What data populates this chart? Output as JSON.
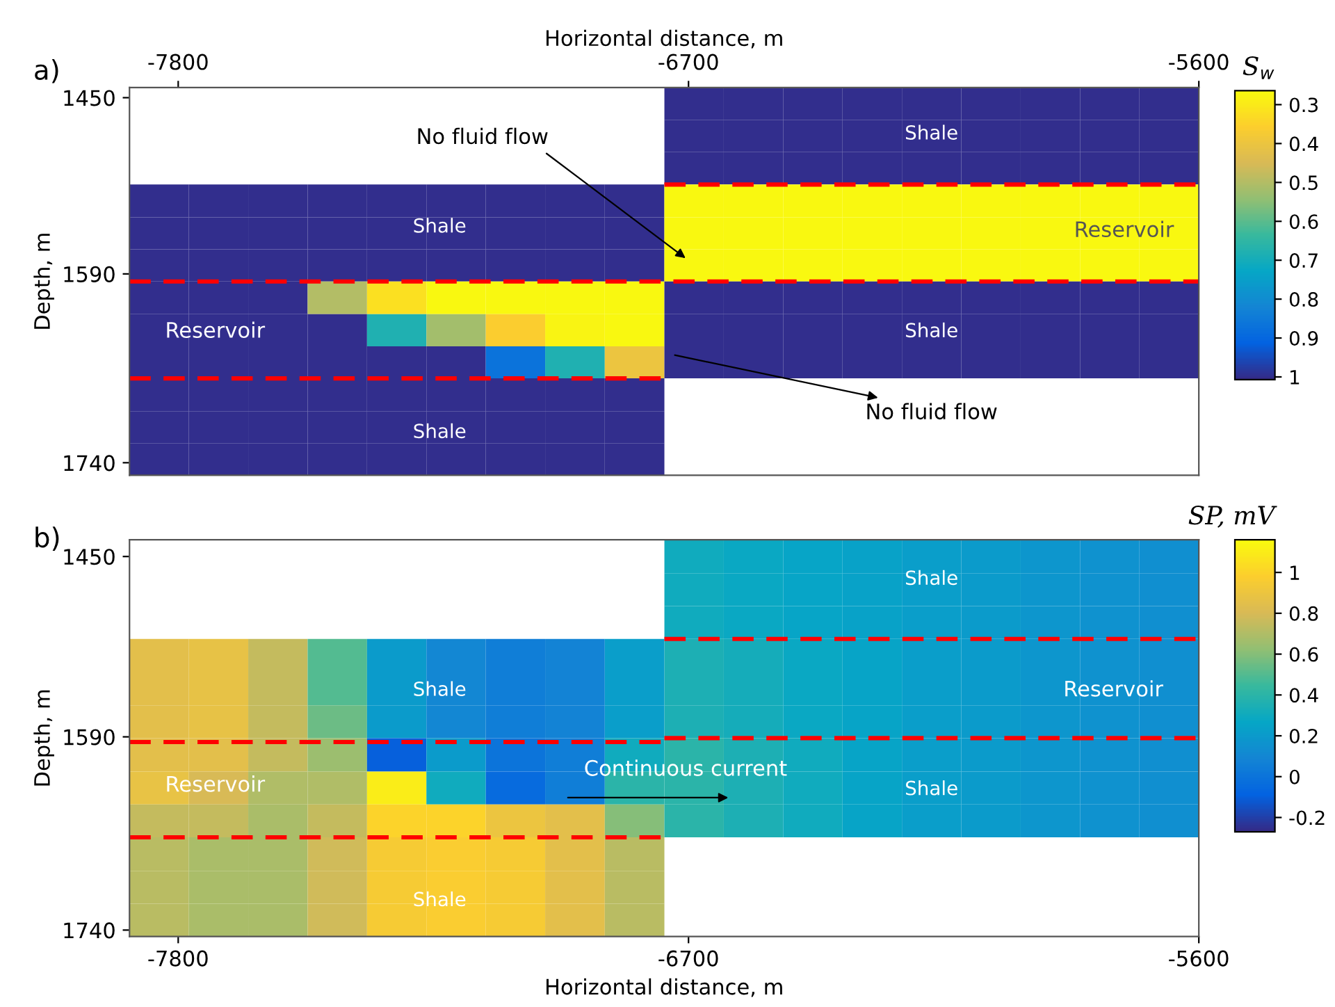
{
  "chart_data": [
    {
      "type": "heatmap",
      "title": "a)",
      "xlabel": "Horizontal distance, m",
      "ylabel": "Depth, m",
      "clabel": "S$_{w}$",
      "x": [
        -7841,
        -7713,
        -7585,
        -7457,
        -7329,
        -7201,
        -7073,
        -6945,
        -6816,
        -6688,
        -6560,
        -6432,
        -6304,
        -6176,
        -6048,
        -5920,
        -5792,
        -5664
      ],
      "y": [
        1455,
        1480,
        1506,
        1532,
        1558,
        1583,
        1609,
        1635,
        1660,
        1686,
        1712,
        1737
      ],
      "xlim": [
        -7905,
        -5600
      ],
      "xticks": [
        -7800,
        -6700,
        -5600
      ],
      "ylim": [
        1750,
        1442
      ],
      "yticks": [
        1450,
        1590,
        1740
      ],
      "clim": [
        1.007,
        0.264
      ],
      "cticks": [
        0.3,
        0.4,
        0.5,
        0.6,
        0.7,
        0.8,
        0.9,
        1
      ],
      "cells": [
        [
          null,
          null,
          null,
          null,
          null,
          null,
          null,
          null,
          null,
          1,
          1,
          1,
          1,
          1,
          1,
          1,
          1,
          1
        ],
        [
          null,
          null,
          null,
          null,
          null,
          null,
          null,
          null,
          null,
          1,
          1,
          1,
          1,
          1,
          1,
          1,
          1,
          1
        ],
        [
          null,
          null,
          null,
          null,
          null,
          null,
          null,
          null,
          null,
          1,
          1,
          1,
          1,
          1,
          1,
          1,
          1,
          1
        ],
        [
          1,
          1,
          1,
          1,
          1,
          1,
          1,
          1,
          1,
          0.27,
          0.27,
          0.27,
          0.27,
          0.27,
          0.27,
          0.27,
          0.27,
          0.27
        ],
        [
          1,
          1,
          1,
          1,
          1,
          1,
          1,
          1,
          1,
          0.27,
          0.27,
          0.27,
          0.27,
          0.27,
          0.27,
          0.27,
          0.27,
          0.27
        ],
        [
          1,
          1,
          1,
          1,
          1,
          1,
          1,
          1,
          1,
          0.27,
          0.27,
          0.27,
          0.27,
          0.27,
          0.27,
          0.27,
          0.27,
          0.27
        ],
        [
          1,
          1,
          1,
          0.5,
          0.32,
          0.27,
          0.27,
          0.27,
          0.27,
          1,
          1,
          1,
          1,
          1,
          1,
          1,
          1,
          1
        ],
        [
          1,
          1,
          1,
          1,
          0.68,
          0.52,
          0.36,
          0.28,
          0.27,
          1,
          1,
          1,
          1,
          1,
          1,
          1,
          1,
          1
        ],
        [
          1,
          1,
          1,
          1,
          1,
          1,
          0.87,
          0.68,
          0.4,
          1,
          1,
          1,
          1,
          1,
          1,
          1,
          1,
          1
        ],
        [
          1,
          1,
          1,
          1,
          1,
          1,
          1,
          1,
          1,
          null,
          null,
          null,
          null,
          null,
          null,
          null,
          null,
          null
        ],
        [
          1,
          1,
          1,
          1,
          1,
          1,
          1,
          1,
          1,
          null,
          null,
          null,
          null,
          null,
          null,
          null,
          null,
          null
        ],
        [
          1,
          1,
          1,
          1,
          1,
          1,
          1,
          1,
          1,
          null,
          null,
          null,
          null,
          null,
          null,
          null,
          null,
          null
        ]
      ],
      "series": [
        {
          "type": "line",
          "x": [
            -6752,
            -5600
          ],
          "values": [
            1519,
            1519
          ],
          "color": "#ff0000",
          "line_style": "dashed"
        },
        {
          "type": "line",
          "x": [
            -7905,
            -5600
          ],
          "values": [
            1596,
            1596
          ],
          "color": "#ff0000",
          "line_style": "dashed"
        },
        {
          "type": "line",
          "x": [
            -7905,
            -6752
          ],
          "values": [
            1673,
            1673
          ],
          "color": "#ff0000",
          "line_style": "dashed"
        }
      ],
      "annotations": [
        "Shale",
        "Shale",
        "Reservoir",
        "Reservoir",
        "Shale",
        "Shale",
        "No fluid flow",
        "No fluid flow"
      ]
    },
    {
      "type": "heatmap",
      "title": "b)",
      "xlabel": "Horizontal distance, m",
      "ylabel": "Depth, m",
      "clabel": "SP, mV",
      "x": [
        -7841,
        -7713,
        -7585,
        -7457,
        -7329,
        -7201,
        -7073,
        -6945,
        -6816,
        -6688,
        -6560,
        -6432,
        -6304,
        -6176,
        -6048,
        -5920,
        -5792,
        -5664
      ],
      "y": [
        1450,
        1476,
        1501,
        1527,
        1553,
        1578,
        1604,
        1630,
        1655,
        1681,
        1707,
        1732
      ],
      "xlim": [
        -7905,
        -5600
      ],
      "xticks": [
        -7800,
        -6700,
        -5600
      ],
      "ylim": [
        1745,
        1437
      ],
      "yticks": [
        1450,
        1590,
        1740
      ],
      "clim": [
        -0.27,
        1.16
      ],
      "cticks": [
        -0.2,
        0,
        0.2,
        0.4,
        0.6,
        0.8,
        1
      ],
      "cells": [
        [
          null,
          null,
          null,
          null,
          null,
          null,
          null,
          null,
          null,
          0.3,
          0.28,
          0.26,
          0.24,
          0.22,
          0.2,
          0.18,
          0.16,
          0.14
        ],
        [
          null,
          null,
          null,
          null,
          null,
          null,
          null,
          null,
          null,
          0.3,
          0.28,
          0.26,
          0.24,
          0.22,
          0.2,
          0.18,
          0.16,
          0.14
        ],
        [
          null,
          null,
          null,
          null,
          null,
          null,
          null,
          null,
          null,
          0.3,
          0.28,
          0.26,
          0.24,
          0.22,
          0.2,
          0.18,
          0.16,
          0.14
        ],
        [
          0.85,
          0.87,
          0.75,
          0.5,
          0.2,
          0.1,
          0.05,
          0.08,
          0.22,
          0.35,
          0.32,
          0.28,
          0.25,
          0.22,
          0.2,
          0.18,
          0.16,
          0.14
        ],
        [
          0.85,
          0.87,
          0.75,
          0.5,
          0.2,
          0.1,
          0.05,
          0.08,
          0.22,
          0.35,
          0.32,
          0.28,
          0.25,
          0.22,
          0.2,
          0.18,
          0.16,
          0.14
        ],
        [
          0.85,
          0.87,
          0.75,
          0.55,
          0.2,
          0.1,
          0.05,
          0.08,
          0.22,
          0.35,
          0.32,
          0.28,
          0.25,
          0.22,
          0.2,
          0.18,
          0.16,
          0.14
        ],
        [
          0.85,
          0.85,
          0.75,
          0.65,
          -0.1,
          0.2,
          0,
          0.05,
          0.3,
          0.4,
          0.35,
          0.3,
          0.25,
          0.22,
          0.2,
          0.18,
          0.16,
          0.14
        ],
        [
          0.88,
          0.8,
          0.7,
          0.7,
          1.1,
          0.3,
          -0.05,
          0.05,
          0.4,
          0.4,
          0.35,
          0.3,
          0.25,
          0.22,
          0.2,
          0.18,
          0.16,
          0.14
        ],
        [
          0.75,
          0.75,
          0.68,
          0.75,
          1.0,
          1.0,
          0.9,
          0.85,
          0.6,
          0.4,
          0.35,
          0.3,
          0.25,
          0.22,
          0.2,
          0.18,
          0.16,
          0.14
        ],
        [
          0.72,
          0.68,
          0.68,
          0.78,
          0.95,
          0.97,
          0.95,
          0.85,
          0.72,
          null,
          null,
          null,
          null,
          null,
          null,
          null,
          null,
          null
        ],
        [
          0.72,
          0.68,
          0.68,
          0.78,
          0.95,
          0.97,
          0.95,
          0.85,
          0.72,
          null,
          null,
          null,
          null,
          null,
          null,
          null,
          null,
          null
        ],
        [
          0.72,
          0.68,
          0.68,
          0.78,
          0.95,
          0.97,
          0.95,
          0.85,
          0.72,
          null,
          null,
          null,
          null,
          null,
          null,
          null,
          null,
          null
        ]
      ],
      "series": [
        {
          "type": "line",
          "x": [
            -6752,
            -5600
          ],
          "values": [
            1514,
            1514
          ],
          "color": "#ff0000",
          "line_style": "dashed"
        },
        {
          "type": "line",
          "x": [
            -6752,
            -5600
          ],
          "values": [
            1591,
            1591
          ],
          "color": "#ff0000",
          "line_style": "dashed"
        },
        {
          "type": "line",
          "x": [
            -7905,
            -6752
          ],
          "values": [
            1594,
            1594
          ],
          "color": "#ff0000",
          "line_style": "dashed"
        },
        {
          "type": "line",
          "x": [
            -7905,
            -6752
          ],
          "values": [
            1668,
            1668
          ],
          "color": "#ff0000",
          "line_style": "dashed"
        }
      ],
      "annotations": [
        "Shale",
        "Reservoir",
        "Shale",
        "Shale",
        "Reservoir",
        "Shale",
        "Continuous current"
      ]
    }
  ]
}
